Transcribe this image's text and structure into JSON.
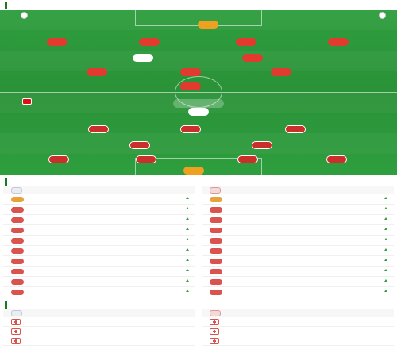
{
  "header": {
    "title": "",
    "subtitle": ""
  },
  "pitch": {
    "home_team_label": "",
    "away_team_label": "",
    "home_formation": "",
    "away_formation": "",
    "away_formation_extra_1": "",
    "away_formation_extra_2": "",
    "center_label": "",
    "home_players": [
      {
        "number": "",
        "name": "",
        "rating": "",
        "minute": ""
      },
      {
        "number": "",
        "name": "",
        "rating": "",
        "minute": ""
      },
      {
        "number": "",
        "name": "",
        "rating": "",
        "minute": ""
      },
      {
        "number": "",
        "name": "",
        "rating": "",
        "minute": ""
      },
      {
        "number": "",
        "name": "",
        "rating": "",
        "minute": ""
      },
      {
        "number": "",
        "name": "",
        "rating": "",
        "minute": ""
      },
      {
        "number": "",
        "name": "",
        "rating": "",
        "minute": ""
      },
      {
        "number": "",
        "name": "",
        "rating": "",
        "minute": ""
      },
      {
        "number": "",
        "name": "",
        "rating": "",
        "minute": ""
      },
      {
        "number": "",
        "name": "",
        "rating": "",
        "minute": ""
      },
      {
        "number": "",
        "name": "",
        "rating": "",
        "minute": ""
      }
    ],
    "away_players": [
      {
        "number": "",
        "name": "",
        "rating": "",
        "minute": ""
      },
      {
        "number": "",
        "name": "",
        "rating": "",
        "minute": ""
      },
      {
        "number": "",
        "name": "",
        "rating": "",
        "minute": ""
      },
      {
        "number": "",
        "name": "",
        "rating": "",
        "minute": ""
      },
      {
        "number": "",
        "name": "",
        "rating": "",
        "minute": ""
      },
      {
        "number": "",
        "name": "",
        "rating": "",
        "minute": ""
      },
      {
        "number": "",
        "name": "",
        "rating": "",
        "minute": ""
      },
      {
        "number": "",
        "name": "",
        "rating": "",
        "minute": ""
      },
      {
        "number": "",
        "name": "",
        "rating": "",
        "minute": ""
      },
      {
        "number": "",
        "name": "",
        "rating": "",
        "minute": ""
      },
      {
        "number": "",
        "name": "",
        "rating": "",
        "minute": ""
      }
    ]
  },
  "subs": {
    "title": "",
    "home_team": "",
    "away_team": "",
    "home": [
      {
        "number": "",
        "name": "",
        "pos": "",
        "score": "",
        "minute": ""
      },
      {
        "number": "",
        "name": "",
        "pos": "",
        "score": "",
        "minute": ""
      },
      {
        "number": "",
        "name": "",
        "pos": "",
        "score": "",
        "minute": ""
      },
      {
        "number": "",
        "name": "",
        "pos": "",
        "score": "",
        "minute": ""
      },
      {
        "number": "",
        "name": "",
        "pos": "",
        "score": "",
        "minute": ""
      },
      {
        "number": "",
        "name": "",
        "pos": "",
        "score": "",
        "minute": ""
      },
      {
        "number": "",
        "name": "",
        "pos": "",
        "score": "",
        "minute": ""
      },
      {
        "number": "",
        "name": "",
        "pos": "",
        "score": "",
        "minute": ""
      },
      {
        "number": "",
        "name": "",
        "pos": "",
        "score": "",
        "minute": ""
      },
      {
        "number": "",
        "name": "",
        "pos": "",
        "score": "",
        "minute": ""
      }
    ],
    "away": [
      {
        "number": "",
        "name": "",
        "pos": "",
        "score": "",
        "minute": ""
      },
      {
        "number": "",
        "name": "",
        "pos": "",
        "score": "",
        "minute": ""
      },
      {
        "number": "",
        "name": "",
        "pos": "",
        "score": "",
        "minute": ""
      },
      {
        "number": "",
        "name": "",
        "pos": "",
        "score": "",
        "minute": ""
      },
      {
        "number": "",
        "name": "",
        "pos": "",
        "score": "",
        "minute": ""
      },
      {
        "number": "",
        "name": "",
        "pos": "",
        "score": "",
        "minute": ""
      },
      {
        "number": "",
        "name": "",
        "pos": "",
        "score": "",
        "minute": ""
      },
      {
        "number": "",
        "name": "",
        "pos": "",
        "score": "",
        "minute": ""
      },
      {
        "number": "",
        "name": "",
        "pos": "",
        "score": "",
        "minute": ""
      },
      {
        "number": "",
        "name": "",
        "pos": "",
        "score": "",
        "minute": ""
      }
    ]
  },
  "injuries": {
    "title": "",
    "home_team": "",
    "away_team": "",
    "home": [
      {
        "name": "",
        "reason": ""
      },
      {
        "name": "",
        "reason": ""
      },
      {
        "name": "",
        "reason": ""
      }
    ],
    "away": [
      {
        "name": "",
        "reason": ""
      },
      {
        "name": "",
        "reason": ""
      },
      {
        "name": "",
        "reason": ""
      }
    ]
  },
  "colors": {
    "pitch_green": "#2e9e3e",
    "home_red": "#e13a2f",
    "away_red": "#c9302c",
    "accent_green": "#1a7a1f"
  }
}
